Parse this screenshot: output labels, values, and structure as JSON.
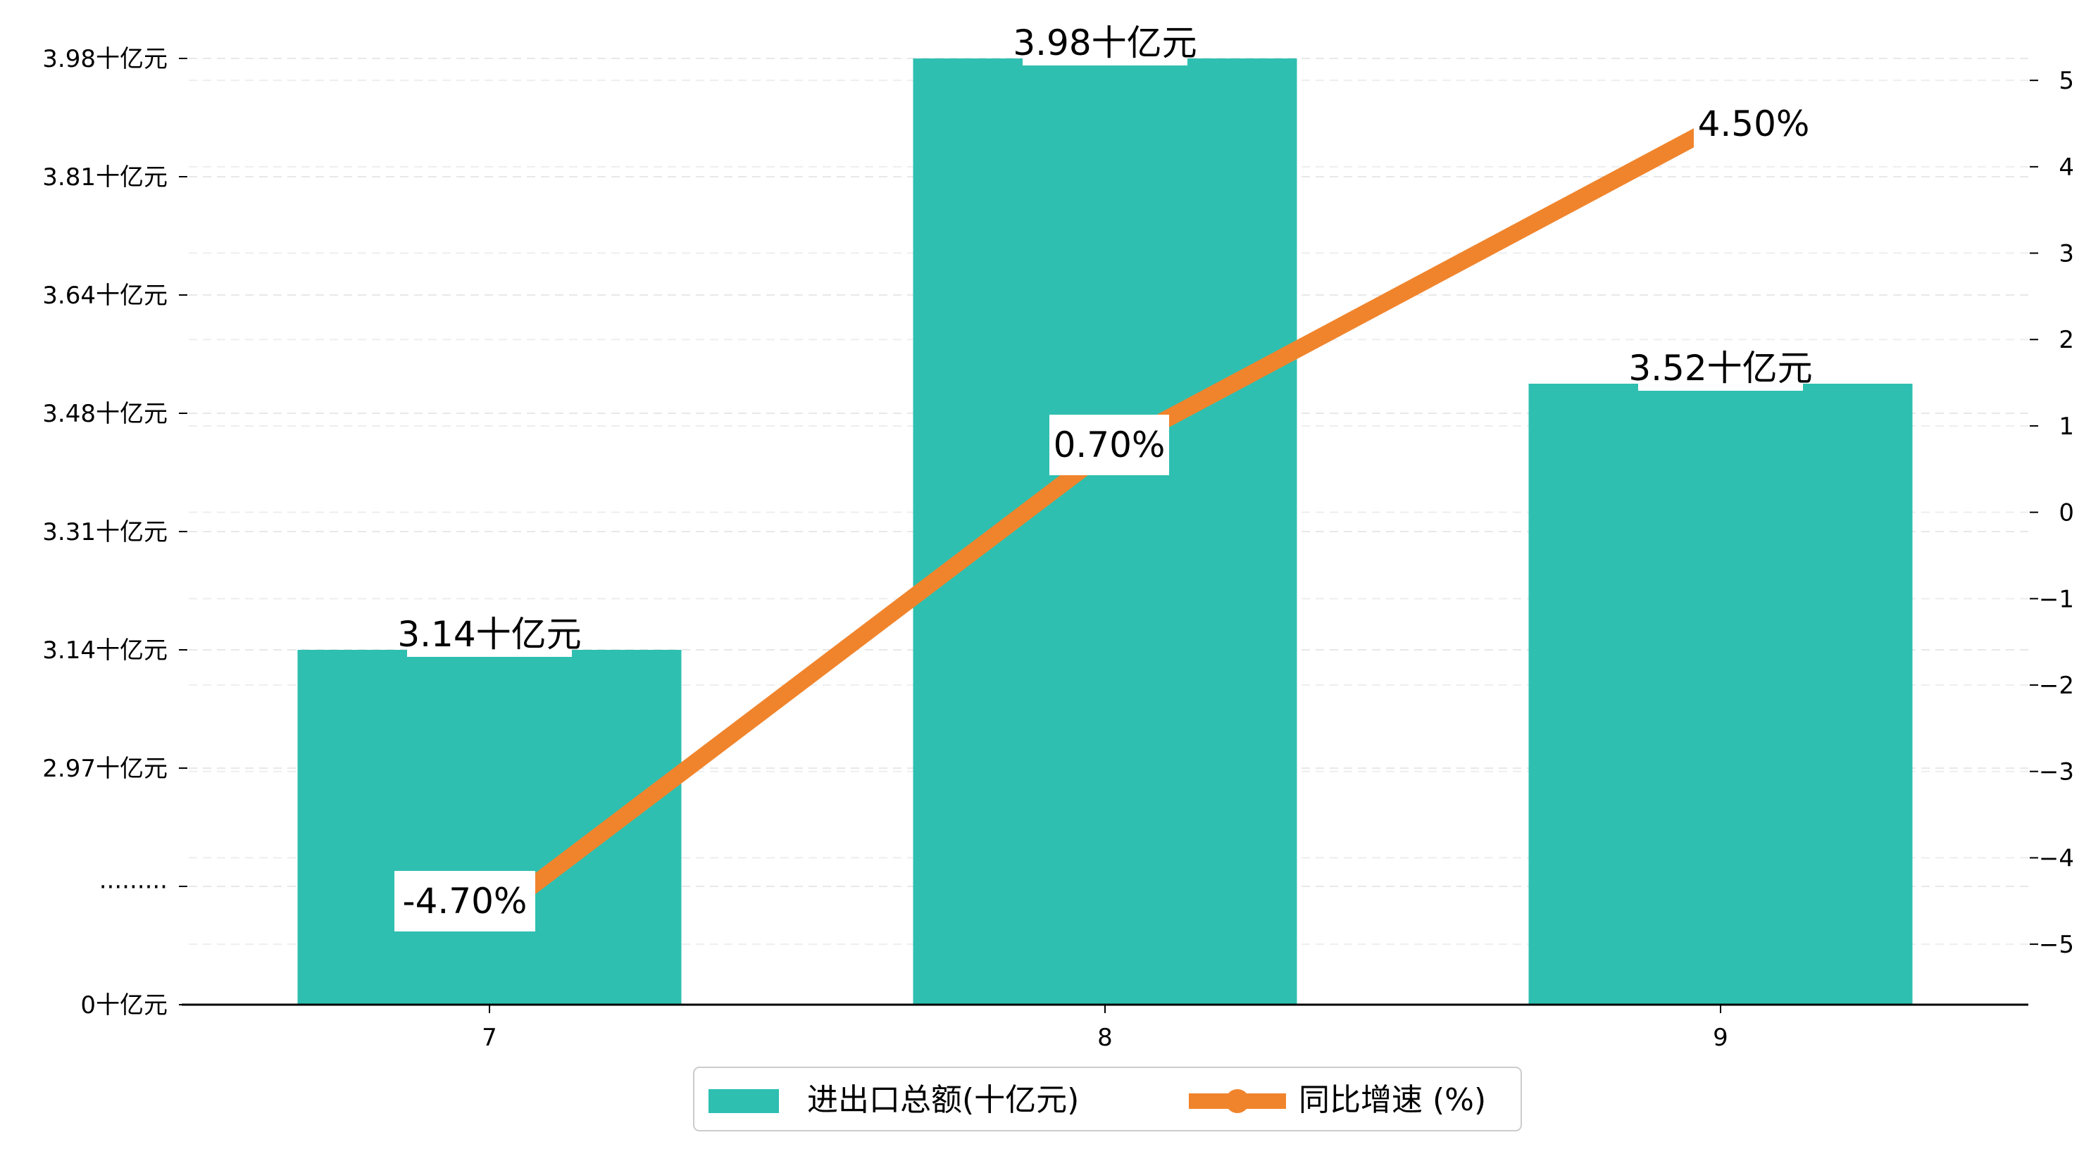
{
  "chart_data": {
    "type": "bar",
    "categories": [
      "7",
      "8",
      "9"
    ],
    "series": [
      {
        "name": "进出口总额(十亿元)",
        "type": "bar",
        "axis": "left",
        "values": [
          3.14,
          3.98,
          3.52
        ],
        "labels": [
          "3.14十亿元",
          "3.98十亿元",
          "3.52十亿元"
        ],
        "color": "#2ebfb1"
      },
      {
        "name": "同比增速 (%)",
        "type": "line",
        "axis": "right",
        "values": [
          -4.7,
          0.7,
          4.5
        ],
        "labels": [
          "-4.70%",
          "0.70%",
          "4.50%"
        ],
        "color": "#f0842c"
      }
    ],
    "left_axis": {
      "ticks": [
        {
          "value": 0,
          "label": "0十亿元"
        },
        {
          "value": 2.8,
          "label": "·········"
        },
        {
          "value": 2.97,
          "label": "2.97十亿元"
        },
        {
          "value": 3.14,
          "label": "3.14十亿元"
        },
        {
          "value": 3.31,
          "label": "3.31十亿元"
        },
        {
          "value": 3.48,
          "label": "3.48十亿元"
        },
        {
          "value": 3.64,
          "label": "3.64十亿元"
        },
        {
          "value": 3.81,
          "label": "3.81十亿元"
        },
        {
          "value": 3.98,
          "label": "3.98十亿元"
        }
      ],
      "broken": true
    },
    "right_axis": {
      "ticks": [
        -5,
        -4,
        -3,
        -2,
        -1,
        0,
        1,
        2,
        3,
        4,
        5
      ],
      "ylim": [
        -5.7,
        5.8
      ]
    },
    "grid": true,
    "legend_position": "bottom-center",
    "title": "",
    "xlabel": "",
    "ylabel": ""
  }
}
